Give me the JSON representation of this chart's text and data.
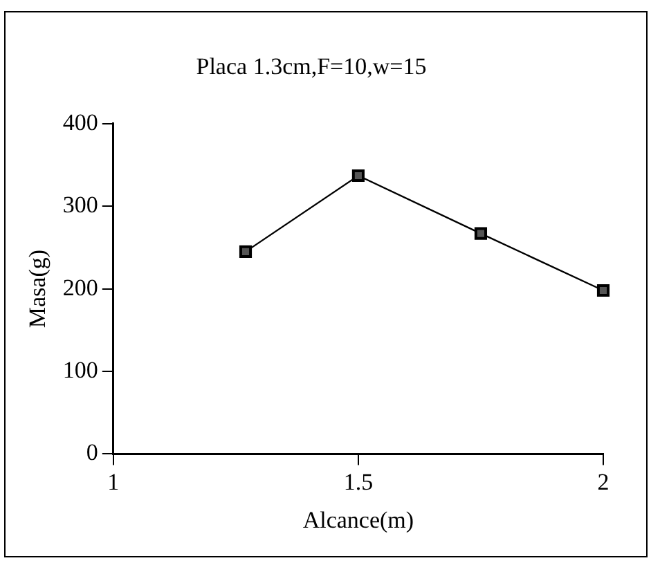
{
  "chart_data": {
    "type": "line",
    "title": "Placa 1.3cm,F=10,w=15",
    "xlabel": "Alcance(m)",
    "ylabel": "Masa(g)",
    "x": [
      1.27,
      1.5,
      1.75,
      2
    ],
    "series": [
      {
        "color": "#000000",
        "values": [
          245,
          337,
          267,
          198
        ]
      }
    ],
    "xlim": [
      1,
      2
    ],
    "xticks": [
      1,
      1.5,
      2
    ],
    "ylim": [
      0,
      400
    ],
    "yticks": [
      0,
      100,
      200,
      300,
      400
    ],
    "grid": false,
    "legend": false,
    "marker": "square",
    "line_style": "solid"
  }
}
